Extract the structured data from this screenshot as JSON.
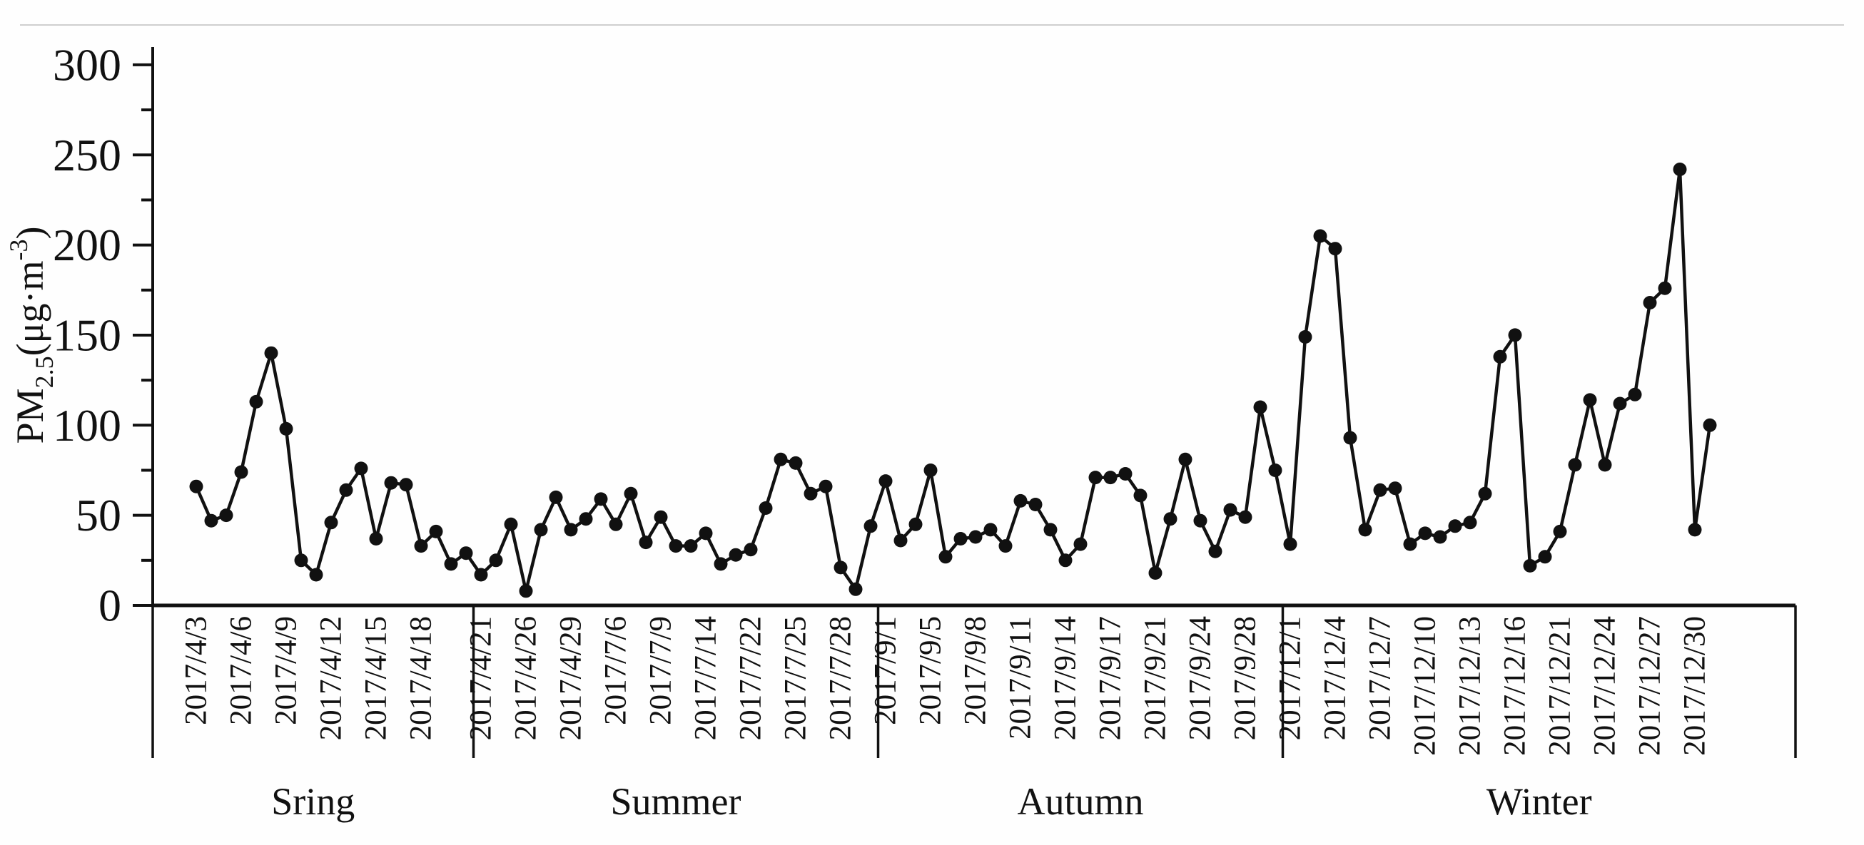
{
  "figure": {
    "background_color": "#fefefe",
    "top_border_color": "#cfcfcf",
    "ink_color": "#111111"
  },
  "chart_data": {
    "type": "line",
    "title": "",
    "xlabel": "",
    "ylabel": "PM2.5(μg·m-3)",
    "ylabel_parts": {
      "pre": "PM",
      "sub": "2.5",
      "mid": "(μg·m",
      "sup": "-3",
      "post": ")"
    },
    "ylim": [
      0,
      300
    ],
    "y_major_step": 50,
    "y_minor_step": 25,
    "y_tick_labels": [
      "0",
      "50",
      "100",
      "150",
      "200",
      "250",
      "300"
    ],
    "grid": false,
    "legend": false,
    "marker": "filled-circle",
    "line_color": "#111111",
    "label_every": 3,
    "seasons": [
      {
        "name": "Sring",
        "tick_labels": [
          "2017/4/3",
          "2017/4/6",
          "2017/4/9",
          "2017/4/12",
          "2017/4/15",
          "2017/4/18"
        ],
        "values": [
          66,
          47,
          50,
          74,
          113,
          140,
          98,
          25,
          17,
          46,
          64,
          76,
          37,
          68,
          67,
          33,
          41,
          23,
          29
        ]
      },
      {
        "name": "Summer",
        "tick_labels": [
          "2017/4/21",
          "2017/4/26",
          "2017/4/29",
          "2017/7/6",
          "2017/7/9",
          "2017/7/14",
          "2017/7/22",
          "2017/7/25",
          "2017/7/28"
        ],
        "values": [
          17,
          25,
          45,
          8,
          42,
          60,
          42,
          48,
          59,
          45,
          62,
          35,
          49,
          33,
          33,
          40,
          23,
          28,
          31,
          54,
          81,
          79,
          62,
          66,
          21,
          9,
          44
        ]
      },
      {
        "name": "Autumn",
        "tick_labels": [
          "2017/9/1",
          "2017/9/5",
          "2017/9/8",
          "2017/9/11",
          "2017/9/14",
          "2017/9/17",
          "2017/9/21",
          "2017/9/24",
          "2017/9/28"
        ],
        "values": [
          69,
          36,
          45,
          75,
          27,
          37,
          38,
          42,
          33,
          58,
          56,
          42,
          25,
          34,
          71,
          71,
          73,
          61,
          18,
          48,
          81,
          47,
          30,
          53,
          49,
          110,
          75
        ]
      },
      {
        "name": "Winter",
        "tick_labels": [
          "2017/12/1",
          "2017/12/4",
          "2017/12/7",
          "2017/12/10",
          "2017/12/13",
          "2017/12/16",
          "2017/12/21",
          "2017/12/24",
          "2017/12/27",
          "2017/12/30"
        ],
        "values": [
          34,
          149,
          205,
          198,
          93,
          42,
          64,
          65,
          34,
          40,
          38,
          44,
          46,
          62,
          138,
          150,
          22,
          27,
          41,
          78,
          114,
          78,
          112,
          117,
          168,
          176,
          242,
          42,
          100
        ]
      }
    ]
  }
}
